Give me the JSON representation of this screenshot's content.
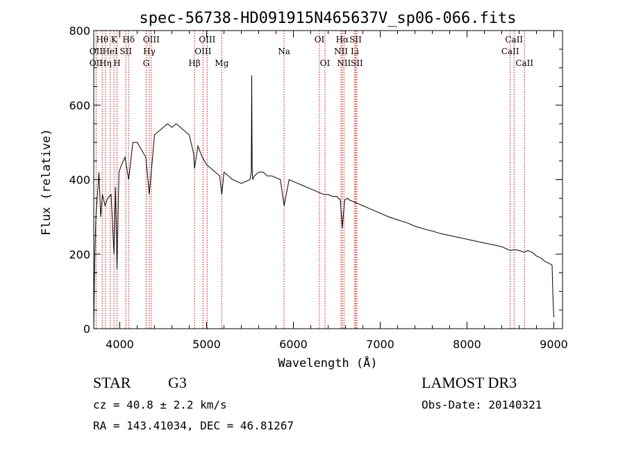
{
  "chart_data": {
    "type": "line",
    "title": "spec-56738-HD091915N465637V_sp06-066.fits",
    "xlabel": "Wavelength (Å)",
    "ylabel": "Flux (relative)",
    "xlim": [
      3700,
      9100
    ],
    "ylim": [
      0,
      800
    ],
    "x_ticks": [
      4000,
      5000,
      6000,
      7000,
      8000,
      9000
    ],
    "y_ticks": [
      0,
      200,
      400,
      600,
      800
    ],
    "grid": false,
    "series": [
      {
        "name": "spectrum",
        "x": [
          3700,
          3710,
          3725,
          3740,
          3760,
          3780,
          3800,
          3830,
          3860,
          3900,
          3933,
          3950,
          3968,
          3990,
          4020,
          4060,
          4102,
          4150,
          4200,
          4250,
          4300,
          4340,
          4400,
          4450,
          4500,
          4550,
          4600,
          4650,
          4700,
          4750,
          4800,
          4850,
          4861,
          4900,
          4950,
          5000,
          5050,
          5100,
          5150,
          5175,
          5200,
          5250,
          5300,
          5350,
          5400,
          5450,
          5500,
          5515,
          5520,
          5525,
          5530,
          5550,
          5600,
          5650,
          5700,
          5750,
          5800,
          5850,
          5893,
          5950,
          6000,
          6050,
          6100,
          6150,
          6200,
          6250,
          6300,
          6350,
          6400,
          6450,
          6500,
          6540,
          6563,
          6590,
          6620,
          6650,
          6700,
          6750,
          6800,
          6900,
          7000,
          7100,
          7200,
          7300,
          7400,
          7500,
          7600,
          7700,
          7800,
          7900,
          8000,
          8100,
          8200,
          8300,
          8400,
          8498,
          8542,
          8600,
          8662,
          8700,
          8750,
          8800,
          8850,
          8900,
          8950,
          8980,
          8990,
          9000
        ],
        "y": [
          0,
          180,
          300,
          350,
          420,
          300,
          360,
          330,
          350,
          360,
          200,
          380,
          160,
          420,
          440,
          460,
          400,
          500,
          500,
          480,
          460,
          360,
          520,
          530,
          540,
          550,
          540,
          550,
          540,
          530,
          520,
          470,
          430,
          490,
          460,
          440,
          430,
          420,
          410,
          360,
          420,
          410,
          400,
          395,
          390,
          395,
          400,
          420,
          680,
          430,
          400,
          410,
          420,
          420,
          410,
          410,
          405,
          400,
          330,
          400,
          395,
          390,
          385,
          380,
          375,
          370,
          365,
          360,
          360,
          355,
          355,
          345,
          270,
          345,
          350,
          345,
          340,
          335,
          330,
          320,
          310,
          300,
          292,
          285,
          275,
          268,
          262,
          255,
          250,
          245,
          240,
          235,
          230,
          225,
          220,
          210,
          212,
          210,
          205,
          210,
          205,
          195,
          190,
          180,
          175,
          170,
          80,
          30
        ]
      }
    ],
    "annotations": [
      {
        "label": "Hθ",
        "x": 3798,
        "row": 1
      },
      {
        "label": "OII",
        "x": 3727,
        "row": 2
      },
      {
        "label": "OII",
        "x": 3727,
        "row": 3
      },
      {
        "label": "Hη",
        "x": 3835,
        "row": 3
      },
      {
        "label": "HeI",
        "x": 3889,
        "row": 2
      },
      {
        "label": "K",
        "x": 3933,
        "row": 1
      },
      {
        "label": "H",
        "x": 3968,
        "row": 3
      },
      {
        "label": "SII",
        "x": 4070,
        "row": 2
      },
      {
        "label": "Hδ",
        "x": 4102,
        "row": 1
      },
      {
        "label": "OIII",
        "x": 4363,
        "row": 1
      },
      {
        "label": "Hγ",
        "x": 4340,
        "row": 2
      },
      {
        "label": "G",
        "x": 4304,
        "row": 3
      },
      {
        "label": "Hβ",
        "x": 4861,
        "row": 3
      },
      {
        "label": "OIII",
        "x": 5007,
        "row": 1
      },
      {
        "label": "OIII",
        "x": 4959,
        "row": 2
      },
      {
        "label": "Mg",
        "x": 5175,
        "row": 3
      },
      {
        "label": "Na",
        "x": 5893,
        "row": 2
      },
      {
        "label": "OI",
        "x": 6300,
        "row": 1
      },
      {
        "label": "OI",
        "x": 6364,
        "row": 3
      },
      {
        "label": "Hα",
        "x": 6563,
        "row": 1
      },
      {
        "label": "NII",
        "x": 6548,
        "row": 2
      },
      {
        "label": "NII",
        "x": 6583,
        "row": 3
      },
      {
        "label": "SII",
        "x": 6716,
        "row": 1
      },
      {
        "label": "Li",
        "x": 6707,
        "row": 2
      },
      {
        "label": "SII",
        "x": 6731,
        "row": 3
      },
      {
        "label": "CaII",
        "x": 8542,
        "row": 1
      },
      {
        "label": "CaII",
        "x": 8498,
        "row": 2
      },
      {
        "label": "CaII",
        "x": 8662,
        "row": 3
      }
    ],
    "line_markers_x": [
      3727,
      3798,
      3835,
      3889,
      3933,
      3968,
      4070,
      4102,
      4304,
      4340,
      4363,
      4861,
      4959,
      5007,
      5175,
      5893,
      6300,
      6364,
      6548,
      6563,
      6583,
      6707,
      6716,
      6731,
      8498,
      8542,
      8662
    ],
    "marker_color": "#c80000"
  },
  "info": {
    "object_class": "STAR",
    "subclass": "G3",
    "survey": "LAMOST DR3",
    "redshift": "cz = 40.8 ± 2.2 km/s",
    "obs_date": "Obs-Date: 20140321",
    "coords": "RA = 143.41034, DEC =  46.81267"
  }
}
